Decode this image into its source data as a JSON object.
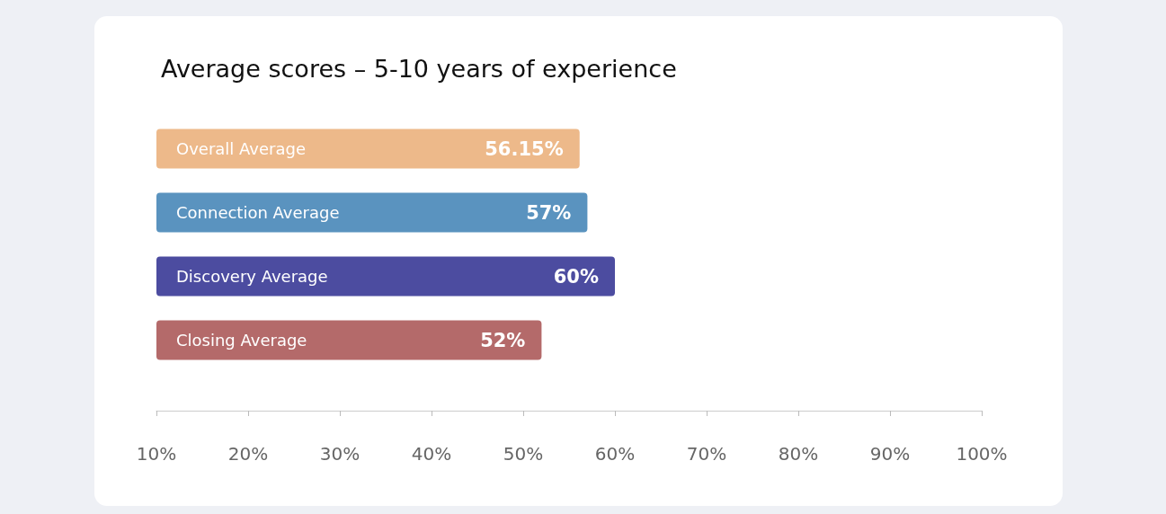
{
  "chart_data": {
    "type": "bar",
    "orientation": "horizontal",
    "title": "Average scores – 5-10 years of experience",
    "categories": [
      "Overall Average",
      "Connection Average",
      "Discovery Average",
      "Closing Average"
    ],
    "values": [
      56.15,
      57,
      60,
      52
    ],
    "colors": [
      "#edb98a",
      "#5a93bf",
      "#4c4ca0",
      "#b46a6a"
    ],
    "xlim": [
      10,
      100
    ],
    "xticks": [
      {
        "value": 10,
        "label": "10%"
      },
      {
        "value": 20,
        "label": "20%"
      },
      {
        "value": 30,
        "label": "30%"
      },
      {
        "value": 40,
        "label": "40%"
      },
      {
        "value": 50,
        "label": "50%"
      },
      {
        "value": 60,
        "label": "60%"
      },
      {
        "value": 70,
        "label": "70%"
      },
      {
        "value": 80,
        "label": "80%"
      },
      {
        "value": 90,
        "label": "90%"
      },
      {
        "value": 100,
        "label": "100%"
      }
    ],
    "value_labels": [
      "56.15%",
      "57%",
      "60%",
      "52%"
    ]
  }
}
